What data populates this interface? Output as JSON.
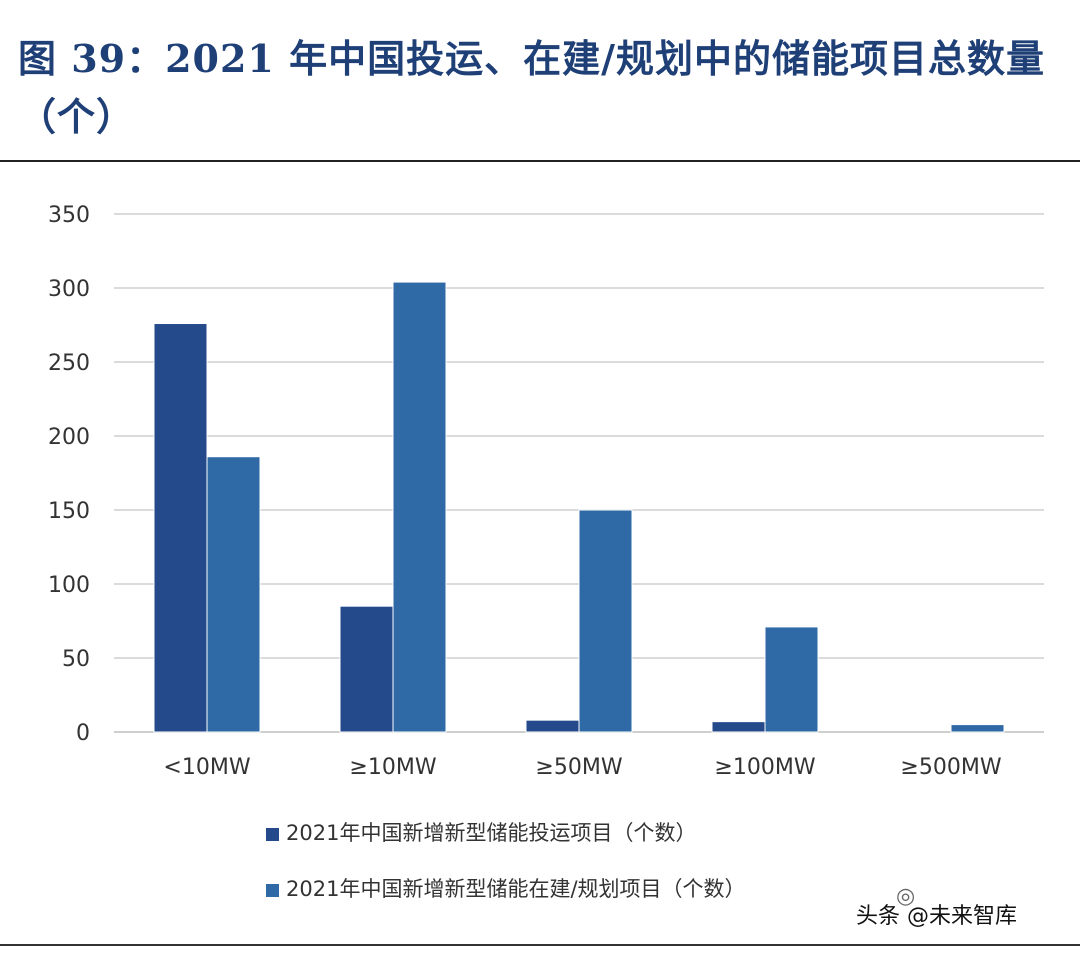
{
  "figure": {
    "title": "图 39：2021 年中国投运、在建/规划中的储能项目总数量（个）"
  },
  "watermark": {
    "text": "头条 @未来智库",
    "icon": "wechat-bubble-icon"
  },
  "chart_data": {
    "type": "bar",
    "categories": [
      "<10MW",
      "≥10MW",
      "≥50MW",
      "≥100MW",
      "≥500MW"
    ],
    "series": [
      {
        "name": "2021年中国新增新型储能投运项目（个数）",
        "values": [
          276,
          85,
          8,
          7,
          0
        ],
        "color": "#244a8c"
      },
      {
        "name": "2021年中国新增新型储能在建/规划项目（个数）",
        "values": [
          186,
          304,
          150,
          71,
          5
        ],
        "color": "#2f69a6"
      }
    ],
    "ylim": [
      0,
      350
    ],
    "yticks": [
      0,
      50,
      100,
      150,
      200,
      250,
      300,
      350
    ],
    "grid": true,
    "legend_position": "bottom"
  }
}
